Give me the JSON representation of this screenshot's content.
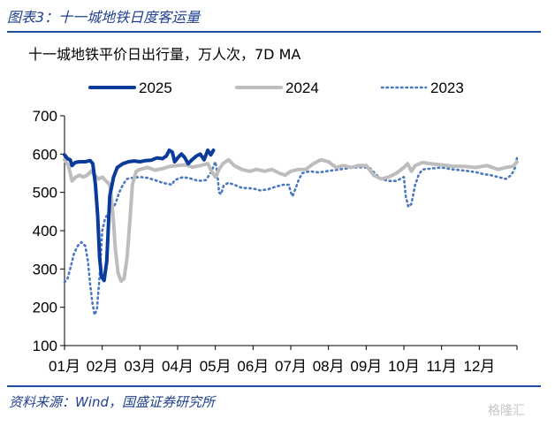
{
  "header": {
    "title": "图表3：十一城地铁日度客运量"
  },
  "footer": {
    "source": "资料来源：Wind，国盛证券研究所",
    "watermark": "格隆汇"
  },
  "chart_data": {
    "type": "line",
    "title": "十一城地铁平价日出行量，万人次，7D MA",
    "xlabel": "",
    "ylabel": "",
    "x_tick_labels": [
      "01月",
      "02月",
      "03月",
      "04月",
      "05月",
      "06月",
      "07月",
      "08月",
      "09月",
      "10月",
      "11月",
      "12月"
    ],
    "x_domain": [
      1,
      13
    ],
    "y_ticks": [
      100,
      200,
      300,
      400,
      500,
      600,
      700
    ],
    "ylim": [
      100,
      700
    ],
    "grid": false,
    "legend_position": "top",
    "series": [
      {
        "name": "2023",
        "color": "#4a78c0",
        "style": "dotted",
        "points": [
          [
            1.0,
            265
          ],
          [
            1.08,
            275
          ],
          [
            1.15,
            300
          ],
          [
            1.25,
            340
          ],
          [
            1.35,
            360
          ],
          [
            1.45,
            370
          ],
          [
            1.55,
            360
          ],
          [
            1.62,
            320
          ],
          [
            1.68,
            260
          ],
          [
            1.74,
            210
          ],
          [
            1.8,
            180
          ],
          [
            1.86,
            195
          ],
          [
            1.93,
            280
          ],
          [
            2.0,
            400
          ],
          [
            2.07,
            430
          ],
          [
            2.15,
            445
          ],
          [
            2.25,
            455
          ],
          [
            2.35,
            470
          ],
          [
            2.45,
            500
          ],
          [
            2.55,
            520
          ],
          [
            2.65,
            535
          ],
          [
            2.8,
            538
          ],
          [
            3.0,
            540
          ],
          [
            3.2,
            538
          ],
          [
            3.4,
            532
          ],
          [
            3.6,
            525
          ],
          [
            3.75,
            522
          ],
          [
            3.85,
            520
          ],
          [
            3.92,
            532
          ],
          [
            4.0,
            535
          ],
          [
            4.15,
            540
          ],
          [
            4.35,
            536
          ],
          [
            4.55,
            530
          ],
          [
            4.75,
            532
          ],
          [
            4.9,
            555
          ],
          [
            5.0,
            580
          ],
          [
            5.05,
            552
          ],
          [
            5.1,
            500
          ],
          [
            5.15,
            495
          ],
          [
            5.22,
            518
          ],
          [
            5.35,
            525
          ],
          [
            5.5,
            520
          ],
          [
            5.7,
            512
          ],
          [
            6.0,
            510
          ],
          [
            6.2,
            505
          ],
          [
            6.4,
            508
          ],
          [
            6.6,
            515
          ],
          [
            6.8,
            520
          ],
          [
            6.95,
            520
          ],
          [
            7.0,
            500
          ],
          [
            7.05,
            490
          ],
          [
            7.12,
            508
          ],
          [
            7.2,
            530
          ],
          [
            7.3,
            550
          ],
          [
            7.5,
            555
          ],
          [
            7.75,
            552
          ],
          [
            8.0,
            556
          ],
          [
            8.3,
            560
          ],
          [
            8.6,
            564
          ],
          [
            8.9,
            566
          ],
          [
            9.1,
            563
          ],
          [
            9.25,
            548
          ],
          [
            9.4,
            535
          ],
          [
            9.6,
            530
          ],
          [
            9.8,
            530
          ],
          [
            10.0,
            540
          ],
          [
            10.05,
            490
          ],
          [
            10.12,
            462
          ],
          [
            10.2,
            470
          ],
          [
            10.3,
            520
          ],
          [
            10.4,
            548
          ],
          [
            10.5,
            560
          ],
          [
            10.7,
            562
          ],
          [
            11.0,
            565
          ],
          [
            11.3,
            560
          ],
          [
            11.6,
            557
          ],
          [
            11.9,
            553
          ],
          [
            12.1,
            548
          ],
          [
            12.3,
            545
          ],
          [
            12.5,
            540
          ],
          [
            12.7,
            535
          ],
          [
            12.85,
            545
          ],
          [
            12.95,
            565
          ],
          [
            13.0,
            590
          ]
        ]
      },
      {
        "name": "2024",
        "color": "#bdbdbd",
        "style": "solid",
        "points": [
          [
            1.0,
            585
          ],
          [
            1.1,
            570
          ],
          [
            1.2,
            530
          ],
          [
            1.3,
            540
          ],
          [
            1.4,
            545
          ],
          [
            1.5,
            540
          ],
          [
            1.6,
            545
          ],
          [
            1.7,
            555
          ],
          [
            1.8,
            545
          ],
          [
            1.9,
            535
          ],
          [
            2.0,
            540
          ],
          [
            2.1,
            530
          ],
          [
            2.2,
            520
          ],
          [
            2.25,
            480
          ],
          [
            2.3,
            420
          ],
          [
            2.35,
            350
          ],
          [
            2.42,
            290
          ],
          [
            2.5,
            268
          ],
          [
            2.58,
            275
          ],
          [
            2.66,
            330
          ],
          [
            2.73,
            420
          ],
          [
            2.8,
            520
          ],
          [
            2.9,
            555
          ],
          [
            3.0,
            560
          ],
          [
            3.2,
            565
          ],
          [
            3.4,
            558
          ],
          [
            3.6,
            562
          ],
          [
            3.8,
            568
          ],
          [
            4.0,
            570
          ],
          [
            4.2,
            572
          ],
          [
            4.4,
            566
          ],
          [
            4.6,
            570
          ],
          [
            4.8,
            575
          ],
          [
            4.9,
            555
          ],
          [
            5.0,
            540
          ],
          [
            5.1,
            560
          ],
          [
            5.2,
            575
          ],
          [
            5.35,
            585
          ],
          [
            5.5,
            570
          ],
          [
            5.7,
            560
          ],
          [
            5.9,
            555
          ],
          [
            6.1,
            560
          ],
          [
            6.3,
            555
          ],
          [
            6.5,
            560
          ],
          [
            6.7,
            550
          ],
          [
            6.85,
            545
          ],
          [
            7.0,
            555
          ],
          [
            7.2,
            560
          ],
          [
            7.4,
            560
          ],
          [
            7.6,
            575
          ],
          [
            7.8,
            585
          ],
          [
            8.0,
            580
          ],
          [
            8.2,
            565
          ],
          [
            8.4,
            570
          ],
          [
            8.6,
            565
          ],
          [
            8.8,
            570
          ],
          [
            9.0,
            570
          ],
          [
            9.2,
            545
          ],
          [
            9.4,
            535
          ],
          [
            9.6,
            540
          ],
          [
            9.8,
            550
          ],
          [
            10.0,
            565
          ],
          [
            10.1,
            575
          ],
          [
            10.2,
            555
          ],
          [
            10.3,
            570
          ],
          [
            10.5,
            578
          ],
          [
            10.7,
            575
          ],
          [
            11.0,
            572
          ],
          [
            11.3,
            568
          ],
          [
            11.6,
            568
          ],
          [
            11.9,
            565
          ],
          [
            12.2,
            570
          ],
          [
            12.5,
            560
          ],
          [
            12.7,
            565
          ],
          [
            12.9,
            568
          ],
          [
            13.0,
            580
          ]
        ]
      },
      {
        "name": "2025",
        "color": "#0b3b9a",
        "style": "solid",
        "points": [
          [
            1.0,
            598
          ],
          [
            1.08,
            588
          ],
          [
            1.15,
            585
          ],
          [
            1.2,
            570
          ],
          [
            1.28,
            578
          ],
          [
            1.4,
            580
          ],
          [
            1.55,
            580
          ],
          [
            1.68,
            583
          ],
          [
            1.75,
            575
          ],
          [
            1.82,
            520
          ],
          [
            1.88,
            440
          ],
          [
            1.93,
            330
          ],
          [
            1.98,
            280
          ],
          [
            2.05,
            270
          ],
          [
            2.12,
            320
          ],
          [
            2.2,
            490
          ],
          [
            2.3,
            540
          ],
          [
            2.4,
            565
          ],
          [
            2.55,
            575
          ],
          [
            2.7,
            580
          ],
          [
            2.85,
            582
          ],
          [
            3.0,
            580
          ],
          [
            3.15,
            583
          ],
          [
            3.3,
            584
          ],
          [
            3.45,
            590
          ],
          [
            3.6,
            588
          ],
          [
            3.7,
            595
          ],
          [
            3.78,
            610
          ],
          [
            3.86,
            605
          ],
          [
            3.92,
            580
          ],
          [
            4.0,
            590
          ],
          [
            4.1,
            600
          ],
          [
            4.18,
            592
          ],
          [
            4.28,
            575
          ],
          [
            4.38,
            585
          ],
          [
            4.5,
            595
          ],
          [
            4.6,
            600
          ],
          [
            4.7,
            585
          ],
          [
            4.8,
            610
          ],
          [
            4.88,
            598
          ],
          [
            4.95,
            610
          ]
        ]
      }
    ]
  }
}
